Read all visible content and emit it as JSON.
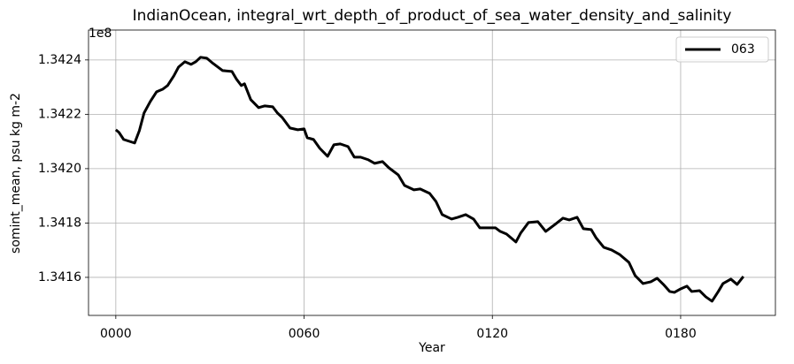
{
  "chart_data": {
    "type": "line",
    "title": "IndianOcean, integral_wrt_depth_of_product_of_sea_water_density_and_salinity",
    "xlabel": "Year",
    "ylabel": "somint_mean, psu kg m-2",
    "y_offset_label": "1e8",
    "x": [
      0,
      1,
      2.5,
      6,
      7.5,
      9,
      11,
      13,
      15,
      16.5,
      18.5,
      20,
      22,
      24,
      25.5,
      27,
      29,
      31,
      34,
      37,
      38.5,
      40,
      41,
      43,
      45.5,
      47.5,
      50,
      51.5,
      53,
      55.5,
      58,
      60,
      61,
      63,
      65,
      67.5,
      69.5,
      71.5,
      74,
      76,
      78,
      80.5,
      82.5,
      85,
      87,
      90,
      92,
      95,
      97,
      100,
      102,
      104,
      107,
      109,
      111.5,
      114,
      116,
      118.5,
      121,
      122.5,
      124.5,
      127.5,
      129,
      131.5,
      134.5,
      137,
      140,
      142.5,
      144.5,
      147,
      149,
      151.5,
      153,
      155.5,
      158,
      160.5,
      163.5,
      165.5,
      168,
      170.5,
      172.5,
      174.5,
      176.5,
      178,
      180,
      182,
      183.5,
      186,
      188,
      190,
      192,
      193.5,
      196,
      198,
      200
    ],
    "series": [
      {
        "name": "063",
        "color": "#000000",
        "values": [
          134214300,
          134213330,
          134210730,
          134209430,
          134213980,
          134220490,
          134224720,
          134228290,
          134229270,
          134230570,
          134234150,
          134237400,
          134239350,
          134238370,
          134239350,
          134240980,
          134240650,
          134238700,
          134236100,
          134235770,
          134232850,
          134230570,
          134231220,
          134225370,
          134222440,
          134223090,
          134222760,
          134220490,
          134218860,
          134214960,
          134214310,
          134214630,
          134211380,
          134210730,
          134207480,
          134204550,
          134208780,
          134209110,
          134208130,
          134204230,
          134204230,
          134203250,
          134201950,
          134202600,
          134200330,
          134197720,
          134193820,
          134192200,
          134192520,
          134190900,
          134187970,
          134183090,
          134181460,
          134182110,
          134183090,
          134181460,
          134178210,
          134178210,
          134178210,
          134176910,
          134175940,
          134173010,
          134176260,
          134180160,
          134180490,
          134176910,
          134179510,
          134181790,
          134181140,
          134182110,
          134177890,
          134177560,
          134174640,
          134171060,
          134170080,
          134168460,
          134165530,
          134160650,
          134157720,
          134158380,
          134159680,
          134157400,
          134154800,
          134154470,
          134155770,
          134156750,
          134154800,
          134155120,
          134152850,
          134151220,
          134154800,
          134157720,
          134159350,
          134157400,
          134160330
        ]
      }
    ],
    "xlim": [
      -8.7,
      210.2
    ],
    "xticks": [
      {
        "value": 0,
        "label": "0000"
      },
      {
        "value": 60,
        "label": "0060"
      },
      {
        "value": 120,
        "label": "0120"
      },
      {
        "value": 180,
        "label": "0180"
      }
    ],
    "ylim": [
      134146000,
      134251000
    ],
    "yticks": [
      {
        "value": 134160000,
        "label": "1.3416"
      },
      {
        "value": 134180000,
        "label": "1.3418"
      },
      {
        "value": 134200000,
        "label": "1.3420"
      },
      {
        "value": 134220000,
        "label": "1.3422"
      },
      {
        "value": 134240000,
        "label": "1.3424"
      }
    ],
    "grid": true,
    "legend": "upper right"
  }
}
